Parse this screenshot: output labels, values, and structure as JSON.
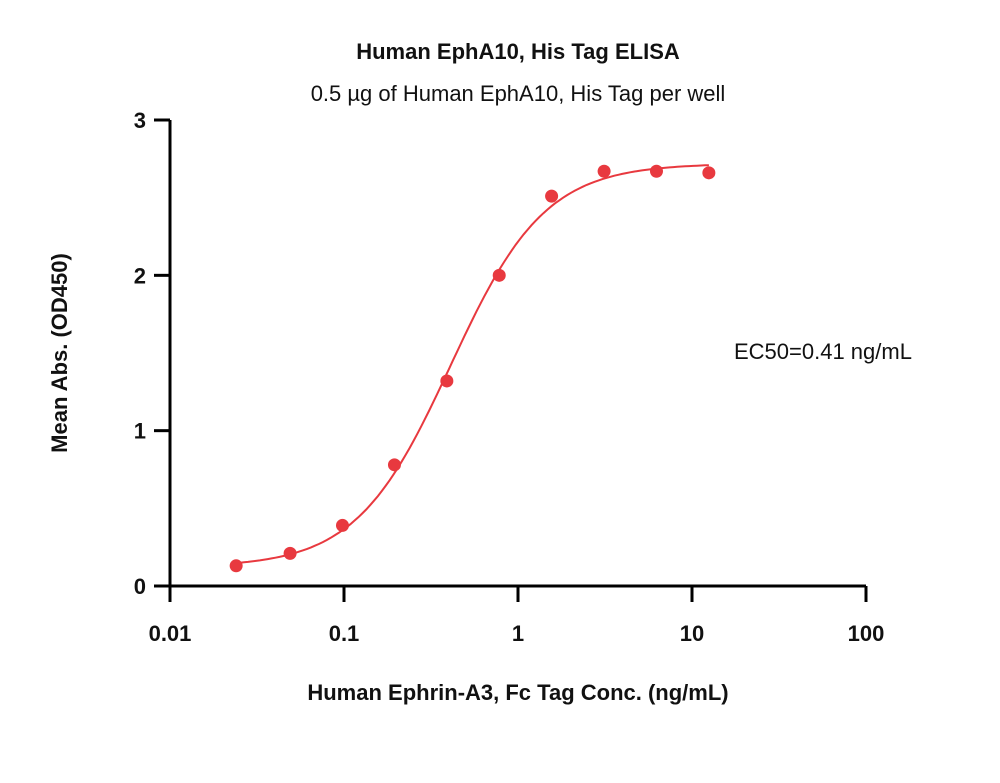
{
  "chart_data": {
    "type": "scatter",
    "title": "Human EphA10, His Tag ELISA",
    "subtitle": "0.5 µg of Human EphA10, His Tag per well",
    "xlabel": "Human Ephrin-A3, Fc Tag Conc. (ng/mL)",
    "ylabel": "Mean Abs. (OD450)",
    "x_scale": "log",
    "xlim": [
      0.01,
      100
    ],
    "ylim": [
      0,
      3
    ],
    "x_ticks": [
      "0.01",
      "0.1",
      "1",
      "10",
      "100"
    ],
    "y_ticks": [
      "0",
      "1",
      "2",
      "3"
    ],
    "annotation": "EC50=0.41 ng/mL",
    "grid": false,
    "series": [
      {
        "color": "#e8393f",
        "x": [
          0.024,
          0.049,
          0.098,
          0.195,
          0.39,
          0.78,
          1.56,
          3.125,
          6.25,
          12.5
        ],
        "y": [
          0.13,
          0.21,
          0.39,
          0.78,
          1.32,
          2.0,
          2.51,
          2.67,
          2.67,
          2.66
        ]
      }
    ],
    "fit": {
      "model": "4PL",
      "bottom": 0.12,
      "top": 2.72,
      "ec50": 0.41,
      "hill": 1.6,
      "x_range": [
        0.024,
        12.5
      ]
    }
  }
}
